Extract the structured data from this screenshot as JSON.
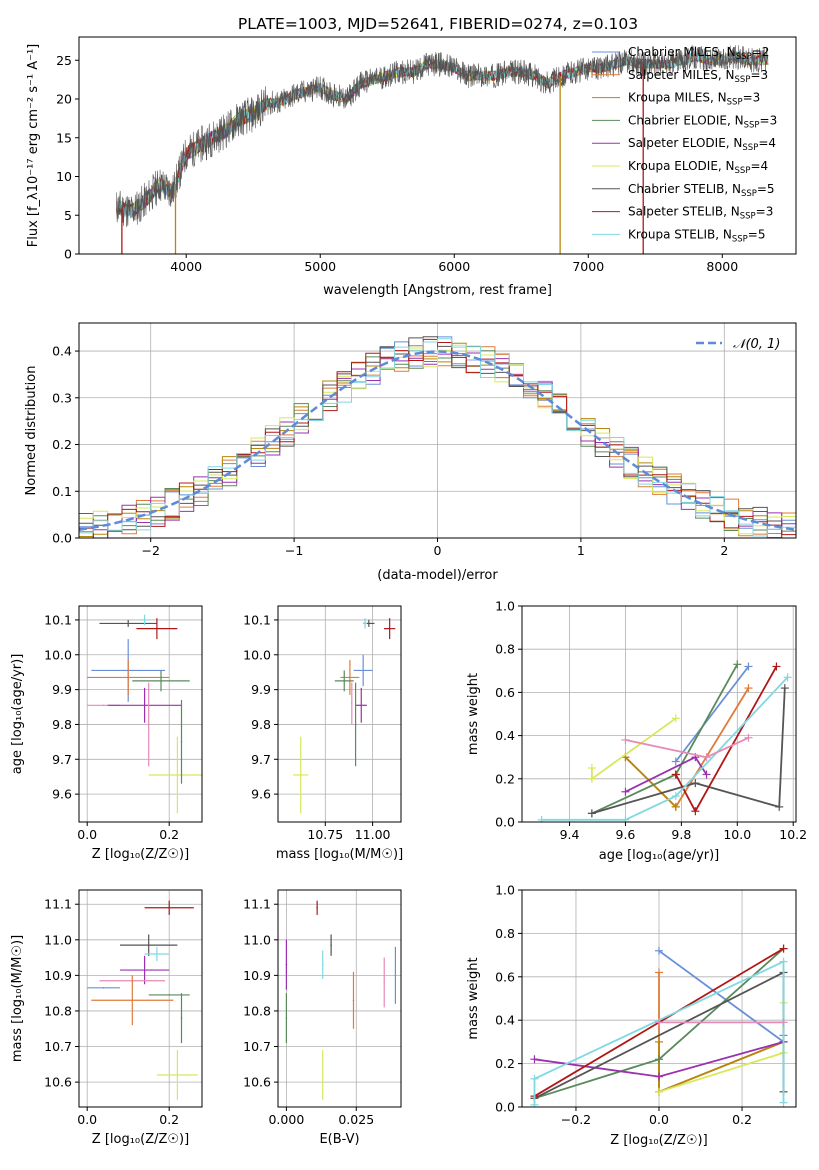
{
  "figure_title": "PLATE=1003, MJD=52641, FIBERID=0274, z=0.103",
  "colors": {
    "chabrier_miles": "#6a8fd8",
    "salpeter_miles": "#e07b39",
    "kroupa_miles": "#b8860b",
    "chabrier_elodie": "#5a8a5a",
    "salpeter_elodie": "#9b30b0",
    "kroupa_elodie": "#d7e85a",
    "chabrier_stelib": "#555555",
    "salpeter_stelib": "#b01818",
    "kroupa_stelib": "#80d8e0",
    "extra_pink": "#e68ab8",
    "normal_fit": "#5b8bd9"
  },
  "chart_data": [
    {
      "id": "spectrum",
      "type": "line",
      "xlabel": "wavelength [Angstrom, rest frame]",
      "ylabel": "Flux [f_λ10⁻¹⁷ erg cm⁻² s⁻¹ A⁻¹]",
      "xlim": [
        3200,
        8550
      ],
      "ylim": [
        0,
        28
      ],
      "xticks": [
        4000,
        5000,
        6000,
        7000,
        8000
      ],
      "yticks": [
        0,
        5,
        10,
        15,
        20,
        25
      ],
      "legend_position": "top-right",
      "continuum": {
        "x": [
          3500,
          3600,
          3700,
          3800,
          3900,
          4000,
          4100,
          4200,
          4300,
          4400,
          4500,
          4600,
          4700,
          4800,
          4900,
          5000,
          5100,
          5200,
          5300,
          5400,
          5500,
          5600,
          5700,
          5800,
          5900,
          6000,
          6100,
          6200,
          6300,
          6400,
          6500,
          6600,
          6700,
          6800,
          6900,
          7000,
          7100,
          7200,
          7300,
          7400,
          7500,
          7600,
          7700,
          7800,
          7900,
          8000,
          8100,
          8200,
          8300
        ],
        "y": [
          6,
          5.5,
          7,
          9,
          8,
          13,
          14,
          15,
          16,
          17.5,
          18,
          19.5,
          19.5,
          20.5,
          21,
          21.5,
          20.5,
          20,
          22,
          22.5,
          23,
          23.5,
          23.5,
          24.5,
          24.5,
          24,
          23,
          23,
          23,
          23.5,
          23.5,
          23,
          22,
          23,
          23.5,
          24,
          24,
          24.5,
          25,
          24.5,
          24.5,
          24.5,
          25,
          25.5,
          25,
          25,
          25.5,
          25,
          25
        ]
      },
      "series": [
        {
          "name": "Chabrier MILES, N_SSP=2",
          "label_main": "Chabrier MILES, N",
          "label_sub": "SSP",
          "label_tail": "=2",
          "color_key": "chabrier_miles"
        },
        {
          "name": "Salpeter MILES, N_SSP=3",
          "label_main": "Salpeter MILES, N",
          "label_sub": "SSP",
          "label_tail": "=3",
          "color_key": "salpeter_miles"
        },
        {
          "name": "Kroupa MILES, N_SSP=3",
          "label_main": "Kroupa MILES, N",
          "label_sub": "SSP",
          "label_tail": "=3",
          "color_key": "kroupa_miles"
        },
        {
          "name": "Chabrier ELODIE, N_SSP=3",
          "label_main": "Chabrier ELODIE, N",
          "label_sub": "SSP",
          "label_tail": "=3",
          "color_key": "chabrier_elodie"
        },
        {
          "name": "Salpeter ELODIE, N_SSP=4",
          "label_main": "Salpeter ELODIE, N",
          "label_sub": "SSP",
          "label_tail": "=4",
          "color_key": "salpeter_elodie"
        },
        {
          "name": "Kroupa ELODIE, N_SSP=4",
          "label_main": "Kroupa ELODIE, N",
          "label_sub": "SSP",
          "label_tail": "=4",
          "color_key": "kroupa_elodie"
        },
        {
          "name": "Chabrier STELIB, N_SSP=5",
          "label_main": "Chabrier STELIB, N",
          "label_sub": "SSP",
          "label_tail": "=5",
          "color_key": "chabrier_stelib"
        },
        {
          "name": "Salpeter STELIB, N_SSP=3",
          "label_main": "Salpeter STELIB, N",
          "label_sub": "SSP",
          "label_tail": "=3",
          "color_key": "salpeter_stelib"
        },
        {
          "name": "Kroupa STELIB, N_SSP=5",
          "label_main": "Kroupa STELIB, N",
          "label_sub": "SSP",
          "label_tail": "=5",
          "color_key": "kroupa_stelib"
        }
      ],
      "vertical_drops": [
        {
          "x": 3520,
          "color_key": "salpeter_stelib"
        },
        {
          "x": 3920,
          "color_key": "kroupa_miles"
        },
        {
          "x": 6790,
          "color_key": "kroupa_miles"
        },
        {
          "x": 7410,
          "color_key": "salpeter_stelib"
        }
      ]
    },
    {
      "id": "residuals",
      "type": "line",
      "xlabel": "(data-model)/error",
      "ylabel": "Normed distribution",
      "xlim": [
        -2.5,
        2.5
      ],
      "ylim": [
        0,
        0.46
      ],
      "xticks": [
        -2,
        -1,
        0,
        1,
        2
      ],
      "yticks": [
        0.0,
        0.1,
        0.2,
        0.3,
        0.4
      ],
      "grid": true,
      "legend_position": "top-right",
      "legend": "𝒩(0, 1)",
      "fit": {
        "name": "𝒩(0, 1)",
        "mean": 0,
        "sigma": 1,
        "color_key": "normal_fit"
      },
      "hist_bins": {
        "start": -2.5,
        "width": 0.1,
        "count": 50
      },
      "hist_series": [
        {
          "color_key": "chabrier_miles",
          "seed": 1
        },
        {
          "color_key": "salpeter_miles",
          "seed": 2
        },
        {
          "color_key": "kroupa_miles",
          "seed": 3
        },
        {
          "color_key": "chabrier_elodie",
          "seed": 4
        },
        {
          "color_key": "salpeter_elodie",
          "seed": 5
        },
        {
          "color_key": "kroupa_elodie",
          "seed": 6
        },
        {
          "color_key": "chabrier_stelib",
          "seed": 7
        },
        {
          "color_key": "salpeter_stelib",
          "seed": 8
        },
        {
          "color_key": "kroupa_stelib",
          "seed": 9
        }
      ]
    },
    {
      "id": "age_vs_Z",
      "type": "scatter",
      "xlabel": "Z [log₁₀(Z/Z☉)]",
      "ylabel": "age  [log₁₀(age/yr)]",
      "xlim": [
        -0.02,
        0.28
      ],
      "ylim": [
        9.52,
        10.14
      ],
      "xticks": [
        0.0,
        0.2
      ],
      "yticks": [
        9.6,
        9.7,
        9.8,
        9.9,
        10.0,
        10.1
      ],
      "grid": true,
      "points": [
        {
          "x": 0.1,
          "y": 10.09,
          "xerr": 0.07,
          "yerr": 0.01,
          "color_key": "chabrier_stelib"
        },
        {
          "x": 0.17,
          "y": 10.075,
          "xerr": 0.05,
          "yerr": 0.03,
          "color_key": "salpeter_stelib"
        },
        {
          "x": 0.14,
          "y": 10.1,
          "xerr": 0.01,
          "yerr": 0.015,
          "color_key": "kroupa_stelib"
        },
        {
          "x": 0.1,
          "y": 9.955,
          "xerr": 0.09,
          "yerr": 0.09,
          "color_key": "chabrier_miles"
        },
        {
          "x": 0.1,
          "y": 9.935,
          "xerr": 0.1,
          "yerr": 0.05,
          "color_key": "salpeter_miles"
        },
        {
          "x": 0.18,
          "y": 9.925,
          "xerr": 0.07,
          "yerr": 0.03,
          "color_key": "chabrier_elodie"
        },
        {
          "x": 0.04,
          "y": 9.855,
          "xerr": 0.04,
          "yerr": 0.0,
          "color_key": "extra_pink"
        },
        {
          "x": 0.14,
          "y": 9.855,
          "xerr": 0.09,
          "yerr": 0.05,
          "color_key": "salpeter_elodie"
        },
        {
          "x": 0.22,
          "y": 9.655,
          "xerr": 0.07,
          "yerr": 0.11,
          "color_key": "kroupa_elodie"
        },
        {
          "x": 0.23,
          "y": 9.75,
          "xerr": 0.0,
          "yerr": 0.12,
          "color_key": "chabrier_elodie"
        },
        {
          "x": 0.15,
          "y": 9.8,
          "xerr": 0.0,
          "yerr": 0.12,
          "color_key": "extra_pink"
        }
      ]
    },
    {
      "id": "age_vs_mass",
      "type": "scatter",
      "xlabel": "mass [log₁₀(M/M☉)]",
      "ylabel": "",
      "xlim": [
        10.5,
        11.15
      ],
      "ylim": [
        9.52,
        10.14
      ],
      "xticks": [
        10.75,
        11.0
      ],
      "yticks": [
        9.6,
        9.7,
        9.8,
        9.9,
        10.0,
        10.1
      ],
      "grid": true,
      "points": [
        {
          "x": 11.09,
          "y": 10.075,
          "xerr": 0.03,
          "yerr": 0.03,
          "color_key": "salpeter_stelib"
        },
        {
          "x": 10.98,
          "y": 10.09,
          "xerr": 0.03,
          "yerr": 0.01,
          "color_key": "chabrier_stelib"
        },
        {
          "x": 10.96,
          "y": 10.09,
          "xerr": 0.01,
          "yerr": 0.015,
          "color_key": "kroupa_stelib"
        },
        {
          "x": 10.95,
          "y": 9.955,
          "xerr": 0.05,
          "yerr": 0.045,
          "color_key": "chabrier_miles"
        },
        {
          "x": 10.88,
          "y": 9.935,
          "xerr": 0.05,
          "yerr": 0.05,
          "color_key": "salpeter_miles"
        },
        {
          "x": 10.85,
          "y": 9.925,
          "xerr": 0.05,
          "yerr": 0.03,
          "color_key": "chabrier_elodie"
        },
        {
          "x": 10.94,
          "y": 9.855,
          "xerr": 0.03,
          "yerr": 0.05,
          "color_key": "salpeter_elodie"
        },
        {
          "x": 10.62,
          "y": 9.655,
          "xerr": 0.04,
          "yerr": 0.11,
          "color_key": "kroupa_elodie"
        },
        {
          "x": 10.91,
          "y": 9.8,
          "xerr": 0.0,
          "yerr": 0.12,
          "color_key": "chabrier_elodie"
        },
        {
          "x": 10.89,
          "y": 9.86,
          "xerr": 0.0,
          "yerr": 0.06,
          "color_key": "extra_pink"
        }
      ]
    },
    {
      "id": "weight_vs_age",
      "type": "line",
      "xlabel": "age  [log₁₀(age/yr)]",
      "ylabel": "mass weight",
      "xlim": [
        9.23,
        10.21
      ],
      "ylim": [
        0,
        1
      ],
      "xticks": [
        9.4,
        9.6,
        9.8,
        10.0,
        10.2
      ],
      "yticks": [
        0.0,
        0.2,
        0.4,
        0.6,
        0.8,
        1.0
      ],
      "grid": true,
      "series": [
        {
          "color_key": "chabrier_miles",
          "x": [
            9.78,
            10.04
          ],
          "y": [
            0.28,
            0.72
          ]
        },
        {
          "color_key": "salpeter_miles",
          "x": [
            9.6,
            9.78,
            10.04
          ],
          "y": [
            0.3,
            0.07,
            0.62
          ]
        },
        {
          "color_key": "kroupa_miles",
          "x": [
            9.6,
            9.78
          ],
          "y": [
            0.3,
            0.07
          ]
        },
        {
          "color_key": "chabrier_elodie",
          "x": [
            9.48,
            9.78,
            10.0
          ],
          "y": [
            0.04,
            0.22,
            0.73
          ]
        },
        {
          "color_key": "salpeter_elodie",
          "x": [
            9.6,
            9.85,
            9.89
          ],
          "y": [
            0.14,
            0.3,
            0.22
          ]
        },
        {
          "color_key": "kroupa_elodie",
          "x": [
            9.48,
            9.48,
            9.78
          ],
          "y": [
            0.25,
            0.2,
            0.48
          ]
        },
        {
          "color_key": "chabrier_stelib",
          "x": [
            9.48,
            9.85,
            10.15,
            10.17
          ],
          "y": [
            0.04,
            0.18,
            0.07,
            0.62
          ]
        },
        {
          "color_key": "salpeter_stelib",
          "x": [
            9.78,
            9.85,
            10.14
          ],
          "y": [
            0.22,
            0.05,
            0.72
          ]
        },
        {
          "color_key": "kroupa_stelib",
          "x": [
            9.3,
            9.6,
            9.78,
            10.18
          ],
          "y": [
            0.01,
            0.01,
            0.12,
            0.67
          ]
        },
        {
          "color_key": "extra_pink",
          "x": [
            9.6,
            9.89,
            10.04
          ],
          "y": [
            0.38,
            0.3,
            0.39
          ]
        }
      ]
    },
    {
      "id": "mass_vs_Z",
      "type": "scatter",
      "xlabel": "Z [log₁₀(Z/Z☉)]",
      "ylabel": "mass [log₁₀(M/M☉)]",
      "xlim": [
        -0.02,
        0.28
      ],
      "ylim": [
        10.53,
        11.14
      ],
      "xticks": [
        0.0,
        0.2
      ],
      "yticks": [
        10.6,
        10.7,
        10.8,
        10.9,
        11.0,
        11.1
      ],
      "grid": true,
      "points": [
        {
          "x": 0.2,
          "y": 11.09,
          "xerr": 0.06,
          "yerr": 0.02,
          "color_key": "salpeter_stelib"
        },
        {
          "x": 0.15,
          "y": 10.985,
          "xerr": 0.07,
          "yerr": 0.03,
          "color_key": "chabrier_stelib"
        },
        {
          "x": 0.17,
          "y": 10.96,
          "xerr": 0.03,
          "yerr": 0.02,
          "color_key": "kroupa_stelib"
        },
        {
          "x": 0.14,
          "y": 10.915,
          "xerr": 0.06,
          "yerr": 0.04,
          "color_key": "salpeter_elodie"
        },
        {
          "x": 0.11,
          "y": 10.885,
          "xerr": 0.08,
          "yerr": 0.0,
          "color_key": "extra_pink"
        },
        {
          "x": 0.04,
          "y": 10.865,
          "xerr": 0.04,
          "yerr": 0.0,
          "color_key": "chabrier_miles"
        },
        {
          "x": 0.11,
          "y": 10.83,
          "xerr": 0.1,
          "yerr": 0.07,
          "color_key": "salpeter_miles"
        },
        {
          "x": 0.2,
          "y": 10.845,
          "xerr": 0.05,
          "yerr": 0.0,
          "color_key": "chabrier_elodie"
        },
        {
          "x": 0.23,
          "y": 10.78,
          "xerr": 0.0,
          "yerr": 0.07,
          "color_key": "chabrier_elodie"
        },
        {
          "x": 0.22,
          "y": 10.62,
          "xerr": 0.05,
          "yerr": 0.07,
          "color_key": "kroupa_elodie"
        }
      ]
    },
    {
      "id": "mass_vs_ebv",
      "type": "scatter",
      "xlabel": "E(B-V)",
      "ylabel": "",
      "xlim": [
        -0.003,
        0.041
      ],
      "ylim": [
        10.53,
        11.14
      ],
      "xticks": [
        0.0,
        0.025
      ],
      "xtick_labels": [
        "0.000",
        "0.025"
      ],
      "yticks": [
        10.6,
        10.7,
        10.8,
        10.9,
        11.0,
        11.1
      ],
      "grid": true,
      "points": [
        {
          "x": 0.011,
          "y": 11.09,
          "xerr": 0.0,
          "yerr": 0.02,
          "color_key": "salpeter_stelib"
        },
        {
          "x": 0.016,
          "y": 10.985,
          "xerr": 0.0,
          "yerr": 0.03,
          "color_key": "chabrier_stelib"
        },
        {
          "x": 0.013,
          "y": 10.93,
          "xerr": 0.0,
          "yerr": 0.04,
          "color_key": "kroupa_stelib"
        },
        {
          "x": 0.0,
          "y": 10.93,
          "xerr": 0.0,
          "yerr": 0.07,
          "color_key": "salpeter_elodie"
        },
        {
          "x": 0.0,
          "y": 10.78,
          "xerr": 0.0,
          "yerr": 0.07,
          "color_key": "chabrier_elodie"
        },
        {
          "x": 0.024,
          "y": 10.83,
          "xerr": 0.0,
          "yerr": 0.08,
          "color_key": "salpeter_miles"
        },
        {
          "x": 0.035,
          "y": 10.88,
          "xerr": 0.0,
          "yerr": 0.07,
          "color_key": "extra_pink"
        },
        {
          "x": 0.039,
          "y": 10.9,
          "xerr": 0.0,
          "yerr": 0.08,
          "color_key": "chabrier_miles"
        },
        {
          "x": 0.013,
          "y": 10.62,
          "xerr": 0.0,
          "yerr": 0.07,
          "color_key": "kroupa_elodie"
        }
      ]
    },
    {
      "id": "weight_vs_Z",
      "type": "line",
      "xlabel": "Z [log₁₀(Z/Z☉)]",
      "ylabel": "mass weight",
      "xlim": [
        -0.33,
        0.33
      ],
      "ylim": [
        0,
        1
      ],
      "xticks": [
        -0.2,
        0.0,
        0.2
      ],
      "xtick_labels": [
        "−0.2",
        "0.0",
        "0.2"
      ],
      "yticks": [
        0.0,
        0.2,
        0.4,
        0.6,
        0.8,
        1.0
      ],
      "grid": true,
      "series": [
        {
          "color_key": "chabrier_miles",
          "x": [
            0.0,
            0.3,
            0.3
          ],
          "y": [
            0.72,
            0.3,
            0.33
          ]
        },
        {
          "color_key": "salpeter_miles",
          "x": [
            0.0,
            0.0,
            0.3
          ],
          "y": [
            0.62,
            0.07,
            0.3
          ]
        },
        {
          "color_key": "kroupa_miles",
          "x": [
            0.0,
            0.0,
            0.3
          ],
          "y": [
            0.3,
            0.07,
            0.3
          ]
        },
        {
          "color_key": "chabrier_elodie",
          "x": [
            -0.3,
            0.0,
            0.3
          ],
          "y": [
            0.04,
            0.22,
            0.73
          ]
        },
        {
          "color_key": "salpeter_elodie",
          "x": [
            -0.3,
            0.0,
            0.3
          ],
          "y": [
            0.22,
            0.14,
            0.3
          ]
        },
        {
          "color_key": "kroupa_elodie",
          "x": [
            0.0,
            0.3,
            0.3
          ],
          "y": [
            0.07,
            0.25,
            0.48
          ]
        },
        {
          "color_key": "chabrier_stelib",
          "x": [
            -0.3,
            0.3,
            0.3
          ],
          "y": [
            0.04,
            0.62,
            0.07
          ]
        },
        {
          "color_key": "salpeter_stelib",
          "x": [
            -0.3,
            0.3
          ],
          "y": [
            0.05,
            0.73
          ]
        },
        {
          "color_key": "kroupa_stelib",
          "x": [
            -0.3,
            -0.3,
            0.3,
            0.3
          ],
          "y": [
            0.01,
            0.13,
            0.67,
            0.02
          ]
        },
        {
          "color_key": "extra_pink",
          "x": [
            0.0,
            0.3
          ],
          "y": [
            0.39,
            0.39
          ]
        }
      ]
    }
  ]
}
